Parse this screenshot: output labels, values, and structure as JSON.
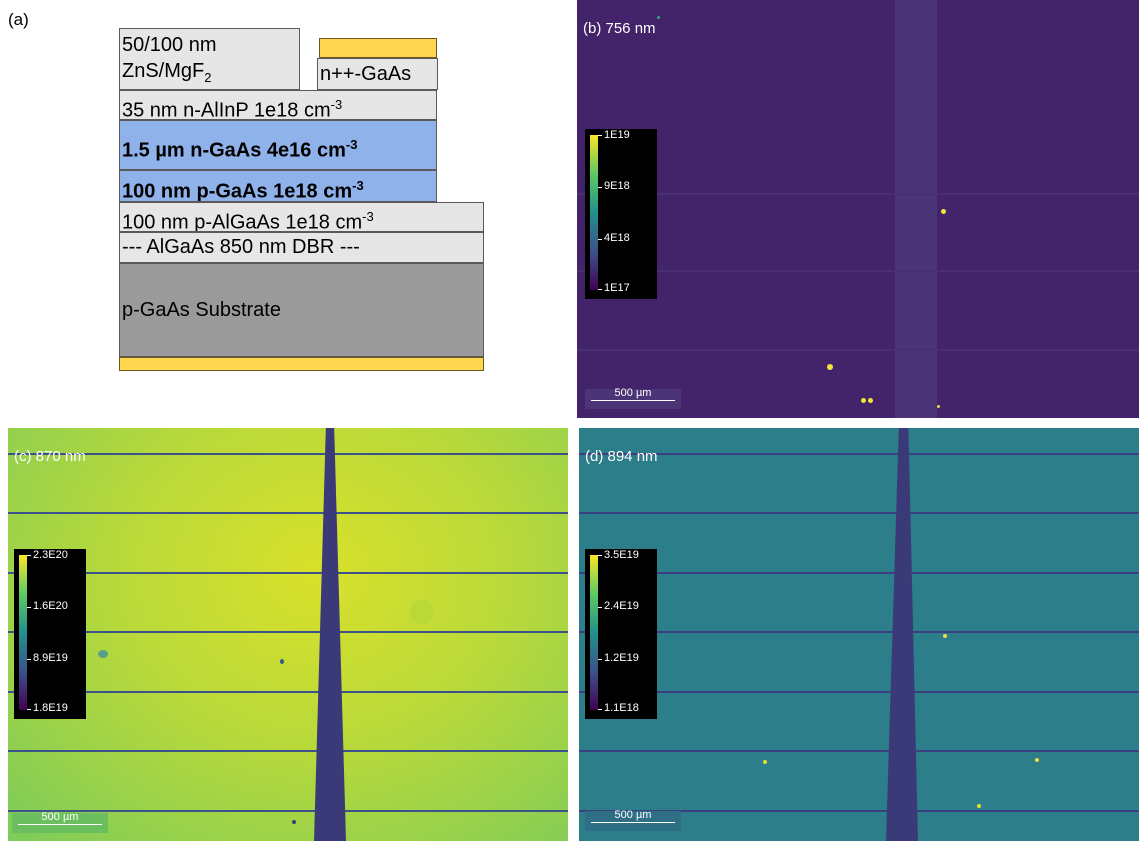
{
  "panel_a": {
    "label": "(a)",
    "coating": {
      "line1": "50/100 nm",
      "line2_main": "ZnS/MgF",
      "line2_sub": "2"
    },
    "contact_cap": "n++-GaAs",
    "layers": [
      {
        "text": "35 nm  n-AlInP  1e18 cm",
        "sup": "-3"
      },
      {
        "text": "1.5 µm  n-GaAs  4e16 cm",
        "sup": "-3"
      },
      {
        "text": "100 nm  p-GaAs  1e18 cm",
        "sup": "-3"
      },
      {
        "text": "100 nm  p-AlGaAs  1e18 cm",
        "sup": "-3"
      },
      {
        "text": "--- AlGaAs 850 nm DBR ---"
      },
      {
        "text": "p-GaAs Substrate"
      }
    ],
    "colors": {
      "gold": "#ffd44e",
      "blue": "#8fb2ea",
      "light": "#e6e6e6",
      "substrate": "#9a9a9a"
    }
  },
  "panel_b": {
    "title": "(b) 756 nm",
    "colorbar": [
      "1E19",
      "9E18",
      "4E18",
      "1E17"
    ],
    "scalebar": "500 µm",
    "background": "#43236a"
  },
  "panel_c": {
    "title": "(c) 870 nm",
    "colorbar": [
      "2.3E20",
      "1.6E20",
      "8.9E19",
      "1.8E19"
    ],
    "scalebar": "500 µm",
    "background": "#b7d93a"
  },
  "panel_d": {
    "title": "(d) 894 nm",
    "colorbar": [
      "3.5E19",
      "2.4E19",
      "1.2E19",
      "1.1E18"
    ],
    "scalebar": "500 µm",
    "background": "#2b7e8a"
  }
}
